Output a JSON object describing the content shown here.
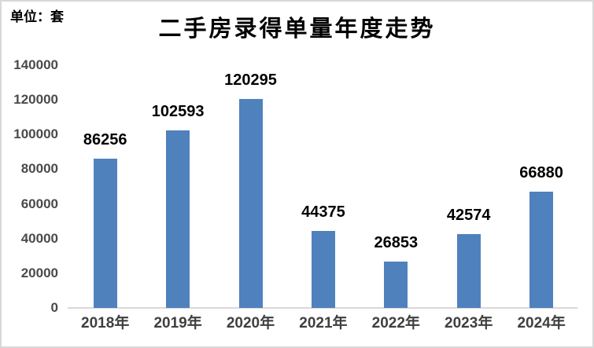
{
  "unit_label": "单位：套",
  "frame": {
    "border_color": "#d8d8d8",
    "background_color": "#ffffff"
  },
  "chart_data": {
    "type": "bar",
    "title": "二手房录得单量年度走势",
    "categories": [
      "2018年",
      "2019年",
      "2020年",
      "2021年",
      "2022年",
      "2023年",
      "2024年"
    ],
    "values": [
      86256,
      102593,
      120295,
      44375,
      26853,
      42574,
      66880
    ],
    "xlabel": "",
    "ylabel": "",
    "unit": "套",
    "ylim": [
      0,
      140000
    ],
    "ytick_step": 20000,
    "ytick_labels": [
      "140000",
      "120000",
      "100000",
      "80000",
      "60000",
      "40000",
      "20000",
      "0"
    ],
    "grid": false,
    "legend": "none",
    "data_labels": true,
    "bar_color": "#4F81BD",
    "value_label_color": "#000000",
    "axis_line_color": "#d9d9d9",
    "ytick_label_color": "#4a4a4a",
    "xtick_label_color": "#3f3f3f",
    "title_color": "#000000"
  }
}
